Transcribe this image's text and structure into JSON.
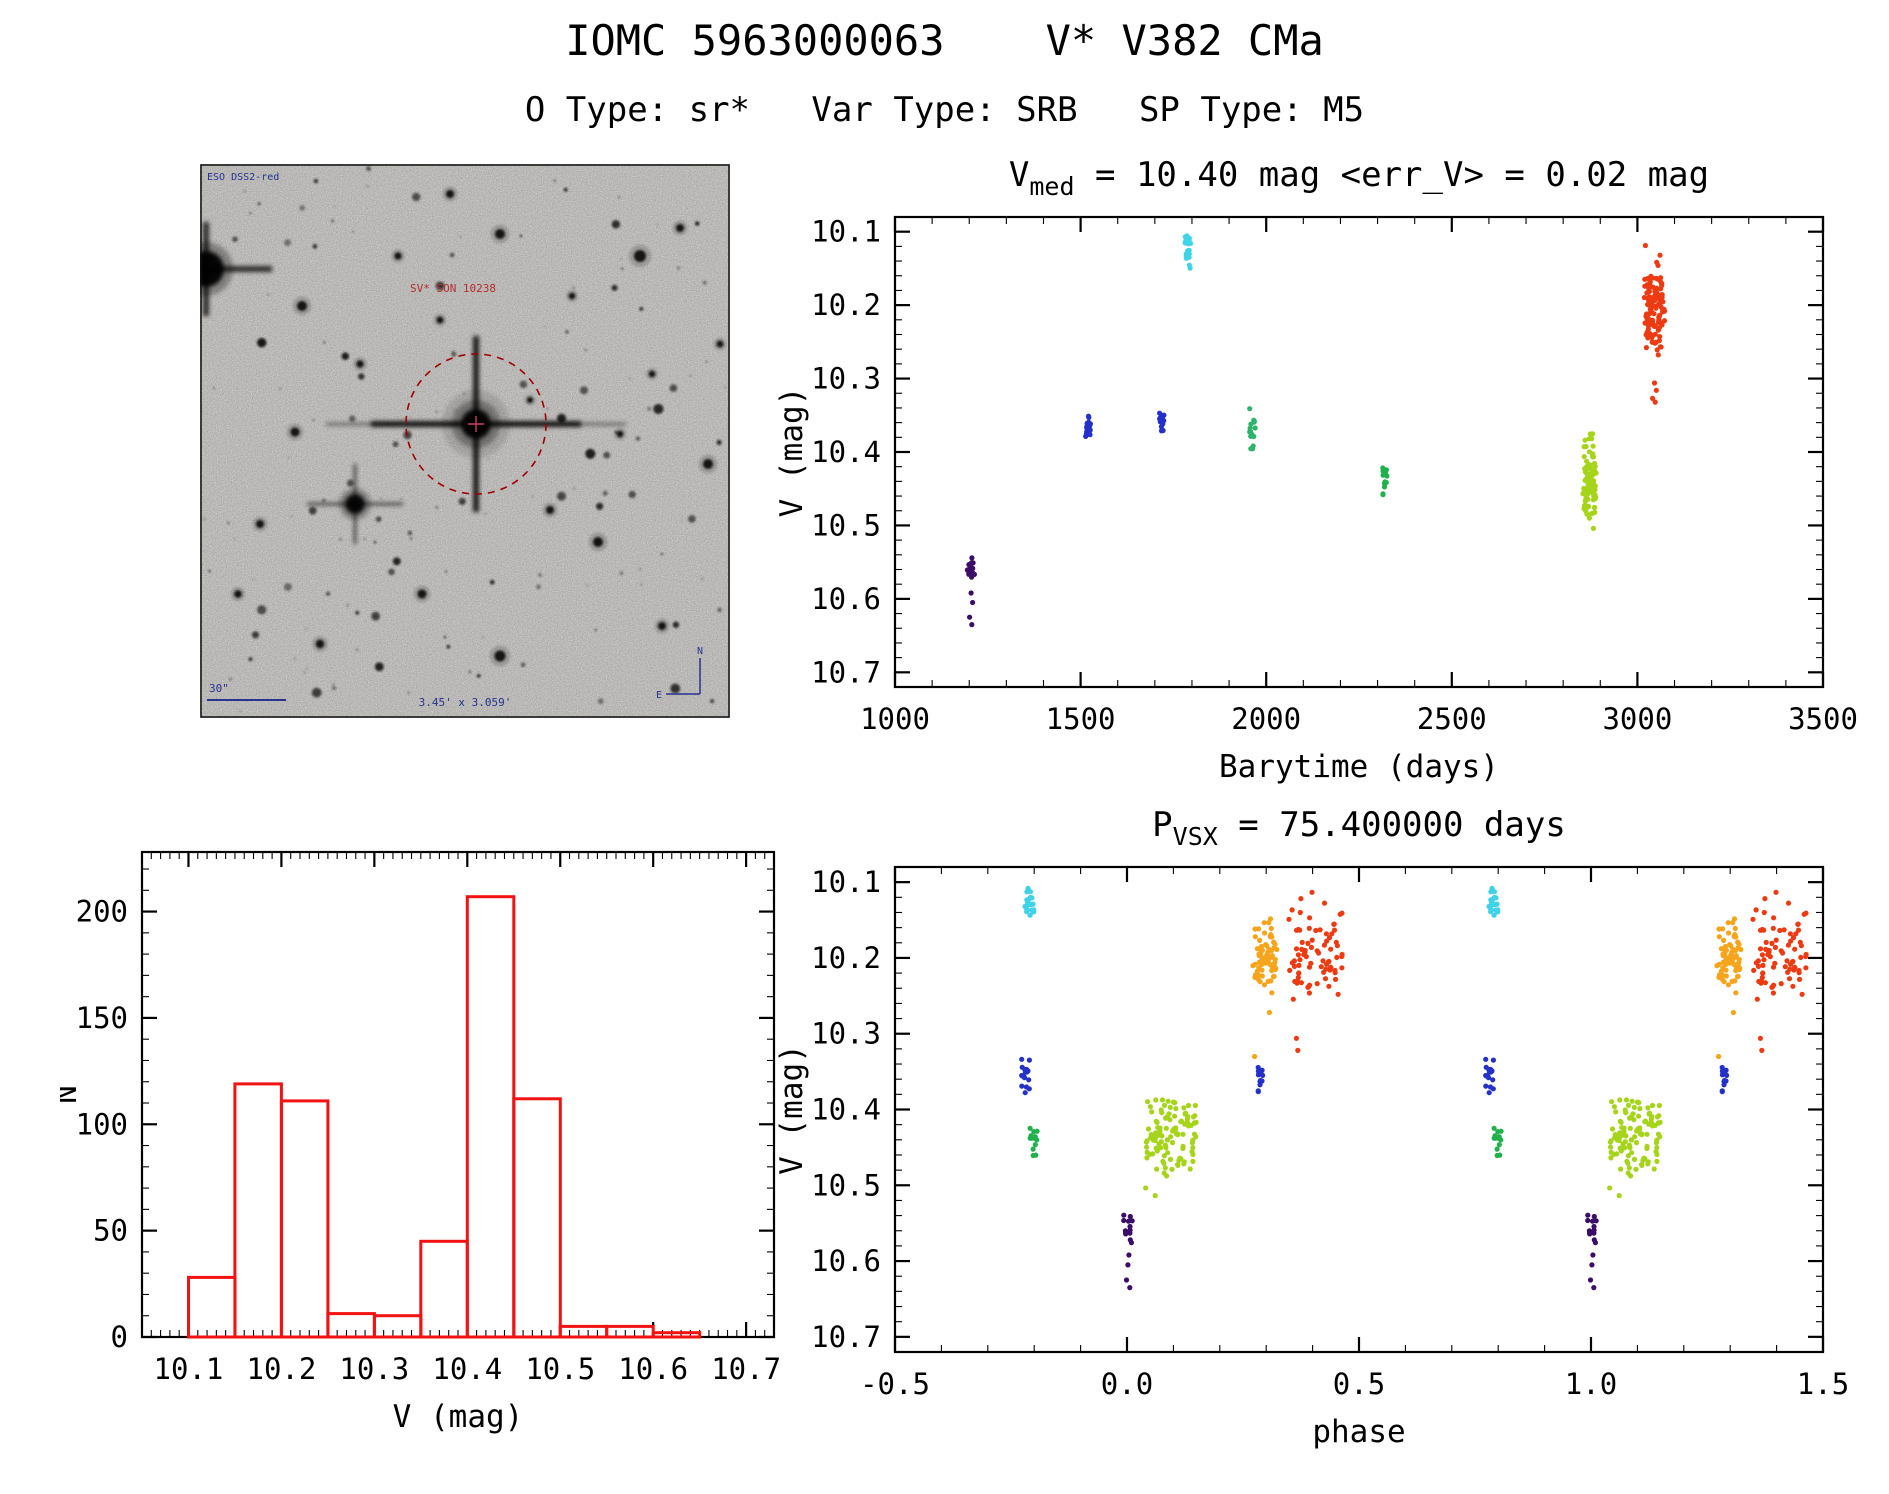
{
  "page": {
    "title": "IOMC 5963000063    V* V382 CMa",
    "subtitle": "O Type: sr*   Var Type: SRB   SP Type: M5"
  },
  "finder": {
    "survey": "ESO DSS2-red",
    "target": "SV* SON 10238",
    "scalebar": "30\"",
    "fov": "3.45' x 3.059'",
    "north": "N",
    "east": "E"
  },
  "colors": {
    "frame": "#000000",
    "histogram": "#f21212",
    "annotation_navy": "#26338f",
    "annotation_red": "#b42f2f",
    "marker_red": "#a00000"
  },
  "chart_data": [
    {
      "id": "lightcurve",
      "type": "scatter",
      "title": {
        "prefix": "V",
        "sub": "med",
        "suffix": " = 10.40 mag <err_V> = 0.02 mag"
      },
      "xlabel": "Barytime (days)",
      "ylabel": "V (mag)",
      "xlim": [
        1000,
        3500
      ],
      "ylim_bottom": 10.72,
      "ylim_top": 10.08,
      "xticks": [
        1000,
        1500,
        2000,
        2500,
        3000,
        3500
      ],
      "yticks": [
        10.1,
        10.2,
        10.3,
        10.4,
        10.5,
        10.6,
        10.7
      ],
      "x_minor": 100,
      "y_minor": 0.02,
      "clusters": [
        {
          "label": "epoch-1205",
          "x": 1205,
          "dx": 10,
          "y": 10.553,
          "sd": 0.011,
          "ymin": 10.532,
          "ymax": 10.578,
          "n": 14,
          "color": "#3b0d69",
          "outliers": [
            [
              0,
              10.592
            ],
            [
              4,
              10.605
            ],
            [
              -4,
              10.625
            ],
            [
              2,
              10.635
            ]
          ]
        },
        {
          "label": "epoch-1520",
          "x": 1520,
          "dx": 7,
          "y": 10.366,
          "sd": 0.009,
          "ymin": 10.349,
          "ymax": 10.384,
          "n": 20,
          "color": "#2431c9"
        },
        {
          "label": "epoch-1718",
          "x": 1718,
          "dx": 7,
          "y": 10.358,
          "sd": 0.008,
          "ymin": 10.341,
          "ymax": 10.374,
          "n": 16,
          "color": "#2431c9"
        },
        {
          "label": "epoch-1789",
          "x": 1789,
          "dx": 8,
          "y": 10.123,
          "sd": 0.013,
          "ymin": 10.102,
          "ymax": 10.15,
          "n": 20,
          "color": "#3ed3e8"
        },
        {
          "label": "epoch-1963",
          "x": 1963,
          "dx": 8,
          "y": 10.37,
          "sd": 0.019,
          "ymin": 10.336,
          "ymax": 10.408,
          "n": 16,
          "color": "#2eb36a"
        },
        {
          "label": "epoch-2318",
          "x": 2318,
          "dx": 8,
          "y": 10.441,
          "sd": 0.012,
          "ymin": 10.42,
          "ymax": 10.463,
          "n": 13,
          "color": "#21b14b"
        },
        {
          "label": "epoch-2871",
          "x": 2871,
          "dx": 18,
          "y": 10.438,
          "sd": 0.033,
          "ymin": 10.367,
          "ymax": 10.523,
          "n": 90,
          "color": "#a6d41a"
        },
        {
          "label": "epoch-3046",
          "x": 3046,
          "dx": 28,
          "y": 10.208,
          "sd": 0.03,
          "ymin": 10.107,
          "ymax": 10.268,
          "n": 120,
          "color": "#ec3a12",
          "outliers": [
            [
              0,
              10.306
            ],
            [
              5,
              10.316
            ],
            [
              -5,
              10.327
            ],
            [
              2,
              10.332
            ]
          ]
        }
      ]
    },
    {
      "id": "histogram",
      "type": "histogram",
      "xlabel": "V (mag)",
      "ylabel": "N",
      "xlim": [
        10.05,
        10.73
      ],
      "ylim_bottom": 0,
      "ylim_top": 228,
      "xticks": [
        10.1,
        10.2,
        10.3,
        10.4,
        10.5,
        10.6,
        10.7
      ],
      "yticks": [
        0,
        50,
        100,
        150,
        200
      ],
      "x_minor": 0.01,
      "y_minor": 10,
      "bin_start": 10.1,
      "bin_width": 0.05,
      "counts": [
        28,
        119,
        111,
        11,
        10,
        45,
        207,
        112,
        5,
        5,
        2
      ],
      "color": "#f21212"
    },
    {
      "id": "phase_plot",
      "type": "scatter",
      "title": {
        "prefix": "P",
        "sub": "VSX",
        "suffix": " = 75.400000 days"
      },
      "xlabel": "phase",
      "ylabel": "V (mag)",
      "xlim": [
        -0.5,
        1.5
      ],
      "ylim_bottom": 10.72,
      "ylim_top": 10.08,
      "xticks": [
        -0.5,
        0.0,
        0.5,
        1.0,
        1.5
      ],
      "xtick_labels": [
        "-0.5",
        "0.0",
        "0.5",
        "1.0",
        "1.5"
      ],
      "yticks": [
        10.1,
        10.2,
        10.3,
        10.4,
        10.5,
        10.6,
        10.7
      ],
      "x_minor": 0.1,
      "y_minor": 0.02,
      "period_days": 75.4,
      "clusters": [
        {
          "label": "cyan",
          "p": 0.79,
          "dp": 0.01,
          "y": 10.123,
          "sd": 0.013,
          "ymin": 10.102,
          "ymax": 10.15,
          "n": 20,
          "color": "#3ed3e8"
        },
        {
          "label": "blue-a",
          "p": 0.781,
          "dp": 0.009,
          "y": 10.356,
          "sd": 0.011,
          "ymin": 10.332,
          "ymax": 10.378,
          "n": 18,
          "color": "#2431c9"
        },
        {
          "label": "green",
          "p": 0.798,
          "dp": 0.009,
          "y": 10.441,
          "sd": 0.012,
          "ymin": 10.42,
          "ymax": 10.463,
          "n": 13,
          "color": "#21b14b"
        },
        {
          "label": "purple",
          "p": 0.002,
          "dp": 0.01,
          "y": 10.553,
          "sd": 0.011,
          "ymin": 10.532,
          "ymax": 10.578,
          "n": 14,
          "color": "#3b0d69",
          "outliers": [
            [
              0.002,
              10.592
            ],
            [
              0,
              10.605
            ],
            [
              -0.003,
              10.625
            ],
            [
              0.004,
              10.635
            ]
          ]
        },
        {
          "label": "chartreuse",
          "p": 0.095,
          "dp": 0.055,
          "y": 10.437,
          "sd": 0.031,
          "ymin": 10.363,
          "ymax": 10.527,
          "n": 110,
          "color": "#a6d41a"
        },
        {
          "label": "blue-b",
          "p": 0.286,
          "dp": 0.007,
          "y": 10.362,
          "sd": 0.01,
          "ymin": 10.343,
          "ymax": 10.381,
          "n": 13,
          "color": "#2431c9"
        },
        {
          "label": "orange",
          "p": 0.297,
          "dp": 0.026,
          "y": 10.196,
          "sd": 0.025,
          "ymin": 10.147,
          "ymax": 10.251,
          "n": 70,
          "color": "#f6a41b",
          "outliers": [
            [
              -0.022,
              10.33
            ],
            [
              0.01,
              10.272
            ]
          ]
        },
        {
          "label": "red",
          "p": 0.405,
          "dp": 0.06,
          "y": 10.198,
          "sd": 0.034,
          "ymin": 10.112,
          "ymax": 10.258,
          "n": 80,
          "color": "#ec3a12",
          "outliers": [
            [
              -0.04,
              10.306
            ],
            [
              -0.037,
              10.322
            ],
            [
              0.05,
              10.248
            ]
          ]
        }
      ]
    }
  ]
}
